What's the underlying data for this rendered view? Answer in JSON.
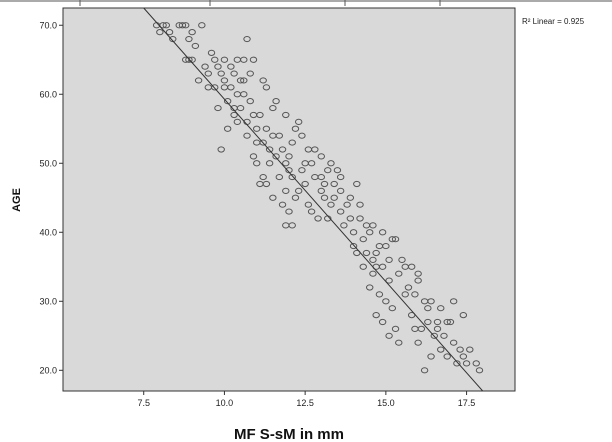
{
  "chart_data": {
    "type": "scatter",
    "xlabel": "MF S-sM in mm",
    "ylabel": "AGE",
    "xlim": [
      5.0,
      19.0
    ],
    "ylim": [
      17.0,
      72.5
    ],
    "xticks": [
      7.5,
      10.0,
      12.5,
      15.0,
      17.5
    ],
    "yticks": [
      20.0,
      30.0,
      40.0,
      50.0,
      60.0,
      70.0
    ],
    "grid": false,
    "fit_line": {
      "label": "R² Linear = 0.925",
      "x1": 7.5,
      "y1": 72.5,
      "x2": 18.0,
      "y2": 17.0
    },
    "point_color": "#555555",
    "plot_background": "#d9d9d9",
    "points": [
      [
        7.9,
        70
      ],
      [
        8.0,
        69
      ],
      [
        8.1,
        70
      ],
      [
        8.2,
        70
      ],
      [
        8.3,
        69
      ],
      [
        8.6,
        70
      ],
      [
        8.8,
        70
      ],
      [
        8.7,
        70
      ],
      [
        8.4,
        68
      ],
      [
        9.3,
        70
      ],
      [
        9.0,
        69
      ],
      [
        9.1,
        67
      ],
      [
        8.8,
        65
      ],
      [
        8.9,
        65
      ],
      [
        9.6,
        66
      ],
      [
        9.7,
        65
      ],
      [
        9.4,
        64
      ],
      [
        9.8,
        64
      ],
      [
        10.0,
        65
      ],
      [
        10.4,
        65
      ],
      [
        10.6,
        65
      ],
      [
        10.9,
        65
      ],
      [
        10.7,
        68
      ],
      [
        10.3,
        63
      ],
      [
        10.5,
        62
      ],
      [
        10.8,
        63
      ],
      [
        10.6,
        62
      ],
      [
        11.2,
        62
      ],
      [
        11.3,
        61
      ],
      [
        10.2,
        61
      ],
      [
        10.4,
        60
      ],
      [
        10.0,
        61
      ],
      [
        9.9,
        63
      ],
      [
        10.1,
        59
      ],
      [
        9.8,
        58
      ],
      [
        10.3,
        57
      ],
      [
        10.7,
        56
      ],
      [
        11.1,
        57
      ],
      [
        10.8,
        59
      ],
      [
        10.5,
        58
      ],
      [
        11.0,
        55
      ],
      [
        10.1,
        55
      ],
      [
        9.9,
        52
      ],
      [
        11.5,
        54
      ],
      [
        11.7,
        54
      ],
      [
        11.2,
        53
      ],
      [
        11.8,
        52
      ],
      [
        12.1,
        53
      ],
      [
        12.3,
        56
      ],
      [
        12.2,
        55
      ],
      [
        12.4,
        54
      ],
      [
        12.0,
        51
      ],
      [
        11.9,
        50
      ],
      [
        12.5,
        50
      ],
      [
        11.4,
        50
      ],
      [
        11.0,
        50
      ],
      [
        10.9,
        51
      ],
      [
        11.2,
        48
      ],
      [
        11.3,
        47
      ],
      [
        11.9,
        46
      ],
      [
        12.3,
        46
      ],
      [
        12.5,
        47
      ],
      [
        12.2,
        45
      ],
      [
        12.6,
        44
      ],
      [
        11.8,
        44
      ],
      [
        12.0,
        43
      ],
      [
        11.9,
        41
      ],
      [
        12.1,
        41
      ],
      [
        12.8,
        48
      ],
      [
        13.2,
        49
      ],
      [
        13.5,
        49
      ],
      [
        13.1,
        47
      ],
      [
        13.0,
        46
      ],
      [
        13.4,
        45
      ],
      [
        13.8,
        44
      ],
      [
        13.6,
        43
      ],
      [
        13.2,
        42
      ],
      [
        12.9,
        42
      ],
      [
        13.7,
        41
      ],
      [
        14.2,
        44
      ],
      [
        14.6,
        41
      ],
      [
        14.5,
        40
      ],
      [
        14.9,
        40
      ],
      [
        14.3,
        39
      ],
      [
        14.0,
        38
      ],
      [
        14.7,
        37
      ],
      [
        14.8,
        38
      ],
      [
        15.0,
        38
      ],
      [
        14.4,
        37
      ],
      [
        14.1,
        37
      ],
      [
        15.2,
        39
      ],
      [
        15.3,
        39
      ],
      [
        14.9,
        35
      ],
      [
        14.7,
        35
      ],
      [
        14.6,
        34
      ],
      [
        15.1,
        33
      ],
      [
        14.5,
        32
      ],
      [
        14.8,
        31
      ],
      [
        15.0,
        30
      ],
      [
        15.2,
        29
      ],
      [
        14.7,
        28
      ],
      [
        14.9,
        27
      ],
      [
        15.3,
        26
      ],
      [
        15.1,
        25
      ],
      [
        15.4,
        24
      ],
      [
        15.8,
        35
      ],
      [
        16.0,
        34
      ],
      [
        15.6,
        31
      ],
      [
        15.9,
        31
      ],
      [
        16.2,
        30
      ],
      [
        16.4,
        30
      ],
      [
        16.3,
        27
      ],
      [
        16.6,
        27
      ],
      [
        16.9,
        27
      ],
      [
        17.0,
        27
      ],
      [
        16.1,
        26
      ],
      [
        15.9,
        26
      ],
      [
        16.5,
        25
      ],
      [
        16.8,
        25
      ],
      [
        17.1,
        24
      ],
      [
        16.7,
        23
      ],
      [
        17.3,
        23
      ],
      [
        17.6,
        23
      ],
      [
        16.4,
        22
      ],
      [
        16.9,
        22
      ],
      [
        17.2,
        21
      ],
      [
        17.5,
        21
      ],
      [
        17.8,
        21
      ],
      [
        17.9,
        20
      ],
      [
        16.2,
        20
      ],
      [
        17.4,
        22
      ],
      [
        13.6,
        46
      ],
      [
        13.9,
        45
      ],
      [
        13.3,
        44
      ],
      [
        10.2,
        64
      ],
      [
        10.0,
        62
      ],
      [
        9.5,
        63
      ],
      [
        9.2,
        62
      ],
      [
        9.7,
        61
      ],
      [
        10.6,
        60
      ],
      [
        11.5,
        58
      ],
      [
        11.9,
        57
      ],
      [
        12.6,
        52
      ],
      [
        12.8,
        52
      ],
      [
        13.0,
        51
      ],
      [
        13.3,
        50
      ],
      [
        13.0,
        48
      ],
      [
        13.6,
        48
      ],
      [
        14.1,
        47
      ],
      [
        13.4,
        47
      ],
      [
        13.9,
        42
      ],
      [
        14.2,
        42
      ],
      [
        14.4,
        41
      ],
      [
        14.0,
        40
      ],
      [
        14.3,
        35
      ],
      [
        15.5,
        36
      ],
      [
        15.6,
        35
      ],
      [
        15.4,
        34
      ],
      [
        16.0,
        33
      ],
      [
        15.7,
        32
      ],
      [
        16.3,
        29
      ],
      [
        16.7,
        29
      ],
      [
        17.1,
        30
      ],
      [
        17.4,
        28
      ],
      [
        16.6,
        26
      ],
      [
        16.0,
        24
      ],
      [
        15.8,
        28
      ],
      [
        14.6,
        36
      ],
      [
        15.1,
        36
      ],
      [
        12.4,
        49
      ],
      [
        12.7,
        50
      ],
      [
        11.6,
        51
      ],
      [
        11.4,
        52
      ],
      [
        11.0,
        53
      ],
      [
        10.7,
        54
      ],
      [
        11.3,
        55
      ],
      [
        10.4,
        56
      ],
      [
        10.9,
        57
      ],
      [
        11.6,
        59
      ],
      [
        10.3,
        58
      ],
      [
        9.5,
        61
      ],
      [
        9.0,
        65
      ],
      [
        8.9,
        68
      ],
      [
        12.7,
        43
      ],
      [
        13.1,
        45
      ],
      [
        12.1,
        48
      ],
      [
        12.0,
        49
      ],
      [
        11.7,
        48
      ],
      [
        11.5,
        45
      ],
      [
        11.1,
        47
      ]
    ]
  }
}
